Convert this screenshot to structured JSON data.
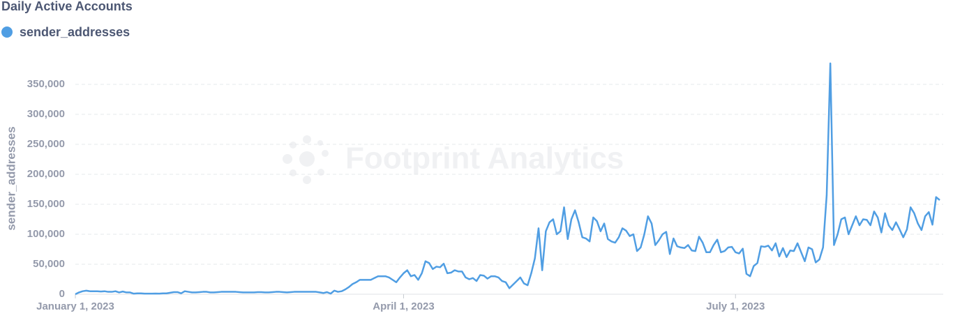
{
  "chart_data": {
    "type": "line",
    "title": "Daily Active Accounts",
    "y_label": "sender_addresses",
    "watermark": "Footprint Analytics",
    "legend": "top-left",
    "grid": true,
    "xlim": [
      "2023-01-01",
      "2023-08-26"
    ],
    "xticks": [
      {
        "value": "2023-01-01",
        "label": "January 1, 2023"
      },
      {
        "value": "2023-04-01",
        "label": "April 1, 2023"
      },
      {
        "value": "2023-07-01",
        "label": "July 1, 2023"
      }
    ],
    "ylim": [
      0,
      400000
    ],
    "yticks": [
      0,
      {
        "value": 50000,
        "label": "50,000"
      },
      {
        "value": 100000,
        "label": "100,000"
      },
      {
        "value": 150000,
        "label": "150,000"
      },
      {
        "value": 200000,
        "label": "200,000"
      },
      {
        "value": 250000,
        "label": "250,000"
      },
      {
        "value": 300000,
        "label": "300,000"
      },
      {
        "value": 350000,
        "label": "350,000"
      }
    ],
    "x": [
      "2023-01-01",
      "2023-01-02",
      "2023-01-03",
      "2023-01-04",
      "2023-01-05",
      "2023-01-06",
      "2023-01-07",
      "2023-01-08",
      "2023-01-09",
      "2023-01-10",
      "2023-01-11",
      "2023-01-12",
      "2023-01-13",
      "2023-01-14",
      "2023-01-15",
      "2023-01-16",
      "2023-01-17",
      "2023-01-18",
      "2023-01-19",
      "2023-01-20",
      "2023-01-21",
      "2023-01-22",
      "2023-01-23",
      "2023-01-24",
      "2023-01-25",
      "2023-01-26",
      "2023-01-27",
      "2023-01-28",
      "2023-01-29",
      "2023-01-30",
      "2023-01-31",
      "2023-02-01",
      "2023-02-02",
      "2023-02-03",
      "2023-02-04",
      "2023-02-05",
      "2023-02-06",
      "2023-02-07",
      "2023-02-08",
      "2023-02-09",
      "2023-02-10",
      "2023-02-11",
      "2023-02-12",
      "2023-02-13",
      "2023-02-14",
      "2023-02-15",
      "2023-02-16",
      "2023-02-17",
      "2023-02-18",
      "2023-02-19",
      "2023-02-20",
      "2023-02-21",
      "2023-02-22",
      "2023-02-23",
      "2023-02-24",
      "2023-02-25",
      "2023-02-26",
      "2023-02-27",
      "2023-02-28",
      "2023-03-01",
      "2023-03-02",
      "2023-03-03",
      "2023-03-04",
      "2023-03-05",
      "2023-03-06",
      "2023-03-07",
      "2023-03-08",
      "2023-03-09",
      "2023-03-10",
      "2023-03-11",
      "2023-03-12",
      "2023-03-13",
      "2023-03-14",
      "2023-03-15",
      "2023-03-16",
      "2023-03-17",
      "2023-03-18",
      "2023-03-19",
      "2023-03-20",
      "2023-03-21",
      "2023-03-22",
      "2023-03-23",
      "2023-03-24",
      "2023-03-25",
      "2023-03-26",
      "2023-03-27",
      "2023-03-28",
      "2023-03-29",
      "2023-03-30",
      "2023-03-31",
      "2023-04-01",
      "2023-04-02",
      "2023-04-03",
      "2023-04-04",
      "2023-04-05",
      "2023-04-06",
      "2023-04-07",
      "2023-04-08",
      "2023-04-09",
      "2023-04-10",
      "2023-04-11",
      "2023-04-12",
      "2023-04-13",
      "2023-04-14",
      "2023-04-15",
      "2023-04-16",
      "2023-04-17",
      "2023-04-18",
      "2023-04-19",
      "2023-04-20",
      "2023-04-21",
      "2023-04-22",
      "2023-04-23",
      "2023-04-24",
      "2023-04-25",
      "2023-04-26",
      "2023-04-27",
      "2023-04-28",
      "2023-04-29",
      "2023-04-30",
      "2023-05-01",
      "2023-05-02",
      "2023-05-03",
      "2023-05-04",
      "2023-05-05",
      "2023-05-06",
      "2023-05-07",
      "2023-05-08",
      "2023-05-09",
      "2023-05-10",
      "2023-05-11",
      "2023-05-12",
      "2023-05-13",
      "2023-05-14",
      "2023-05-15",
      "2023-05-16",
      "2023-05-17",
      "2023-05-18",
      "2023-05-19",
      "2023-05-20",
      "2023-05-21",
      "2023-05-22",
      "2023-05-23",
      "2023-05-24",
      "2023-05-25",
      "2023-05-26",
      "2023-05-27",
      "2023-05-28",
      "2023-05-29",
      "2023-05-30",
      "2023-05-31",
      "2023-06-01",
      "2023-06-02",
      "2023-06-03",
      "2023-06-04",
      "2023-06-05",
      "2023-06-06",
      "2023-06-07",
      "2023-06-08",
      "2023-06-09",
      "2023-06-10",
      "2023-06-11",
      "2023-06-12",
      "2023-06-13",
      "2023-06-14",
      "2023-06-15",
      "2023-06-16",
      "2023-06-17",
      "2023-06-18",
      "2023-06-19",
      "2023-06-20",
      "2023-06-21",
      "2023-06-22",
      "2023-06-23",
      "2023-06-24",
      "2023-06-25",
      "2023-06-26",
      "2023-06-27",
      "2023-06-28",
      "2023-06-29",
      "2023-06-30",
      "2023-07-01",
      "2023-07-02",
      "2023-07-03",
      "2023-07-04",
      "2023-07-05",
      "2023-07-06",
      "2023-07-07",
      "2023-07-08",
      "2023-07-09",
      "2023-07-10",
      "2023-07-11",
      "2023-07-12",
      "2023-07-13",
      "2023-07-14",
      "2023-07-15",
      "2023-07-16",
      "2023-07-17",
      "2023-07-18",
      "2023-07-19",
      "2023-07-20",
      "2023-07-21",
      "2023-07-22",
      "2023-07-23",
      "2023-07-24",
      "2023-07-25",
      "2023-07-26",
      "2023-07-27",
      "2023-07-28",
      "2023-07-29",
      "2023-07-30",
      "2023-07-31",
      "2023-08-01",
      "2023-08-02",
      "2023-08-03",
      "2023-08-04",
      "2023-08-05",
      "2023-08-06",
      "2023-08-07",
      "2023-08-08",
      "2023-08-09",
      "2023-08-10",
      "2023-08-11",
      "2023-08-12",
      "2023-08-13",
      "2023-08-14",
      "2023-08-15",
      "2023-08-16",
      "2023-08-17",
      "2023-08-18",
      "2023-08-19",
      "2023-08-20",
      "2023-08-21",
      "2023-08-22",
      "2023-08-23",
      "2023-08-24",
      "2023-08-25",
      "2023-08-26"
    ],
    "series": [
      {
        "name": "sender_addresses",
        "color": "#509ee3",
        "values": [
          0,
          3000,
          5000,
          6000,
          5000,
          5000,
          5000,
          4500,
          5000,
          4000,
          4000,
          5000,
          3000,
          4500,
          3000,
          3000,
          1000,
          1500,
          1500,
          1000,
          1000,
          1000,
          1200,
          1000,
          1500,
          1500,
          2500,
          3500,
          3500,
          1500,
          5000,
          4000,
          3000,
          3000,
          3500,
          4000,
          4000,
          3000,
          3000,
          3500,
          4000,
          4000,
          4000,
          4000,
          4000,
          3500,
          3000,
          3000,
          3000,
          3000,
          3500,
          3500,
          3000,
          3000,
          3500,
          4000,
          4000,
          3500,
          3000,
          3500,
          4000,
          4000,
          4000,
          4000,
          4000,
          4000,
          4000,
          3000,
          2000,
          3500,
          1000,
          6000,
          4000,
          5000,
          8000,
          12000,
          17000,
          20000,
          24000,
          24000,
          24000,
          24000,
          27000,
          30000,
          30000,
          30000,
          28000,
          24000,
          20000,
          28000,
          35000,
          40000,
          30000,
          32000,
          24000,
          35000,
          55000,
          52000,
          42000,
          46000,
          45000,
          51000,
          35000,
          36000,
          40000,
          38000,
          38000,
          28000,
          25000,
          27000,
          22000,
          32000,
          31000,
          26000,
          30000,
          30000,
          28000,
          22000,
          20000,
          10000,
          16000,
          22000,
          28000,
          18000,
          15000,
          35000,
          60000,
          110000,
          40000,
          105000,
          120000,
          125000,
          100000,
          105000,
          145000,
          92000,
          125000,
          140000,
          120000,
          95000,
          93000,
          88000,
          128000,
          122000,
          105000,
          118000,
          92000,
          88000,
          86000,
          95000,
          110000,
          106000,
          97000,
          100000,
          72000,
          78000,
          100000,
          130000,
          118000,
          82000,
          90000,
          100000,
          104000,
          67000,
          93000,
          80000,
          78000,
          77000,
          82000,
          73000,
          72000,
          96000,
          86000,
          70000,
          70000,
          82000,
          91000,
          70000,
          72000,
          78000,
          79000,
          70000,
          68000,
          76000,
          34000,
          30000,
          47000,
          52000,
          80000,
          79000,
          81000,
          73000,
          85000,
          63000,
          77000,
          62000,
          73000,
          72000,
          85000,
          70000,
          55000,
          78000,
          75000,
          53000,
          58000,
          78000,
          165000,
          385000,
          82000,
          100000,
          125000,
          128000,
          100000,
          115000,
          130000,
          115000,
          125000,
          124000,
          115000,
          138000,
          128000,
          103000,
          135000,
          115000,
          107000,
          120000,
          108000,
          95000,
          108000,
          145000,
          135000,
          118000,
          107000,
          130000,
          137000,
          116000,
          162000,
          157000
        ]
      }
    ]
  }
}
